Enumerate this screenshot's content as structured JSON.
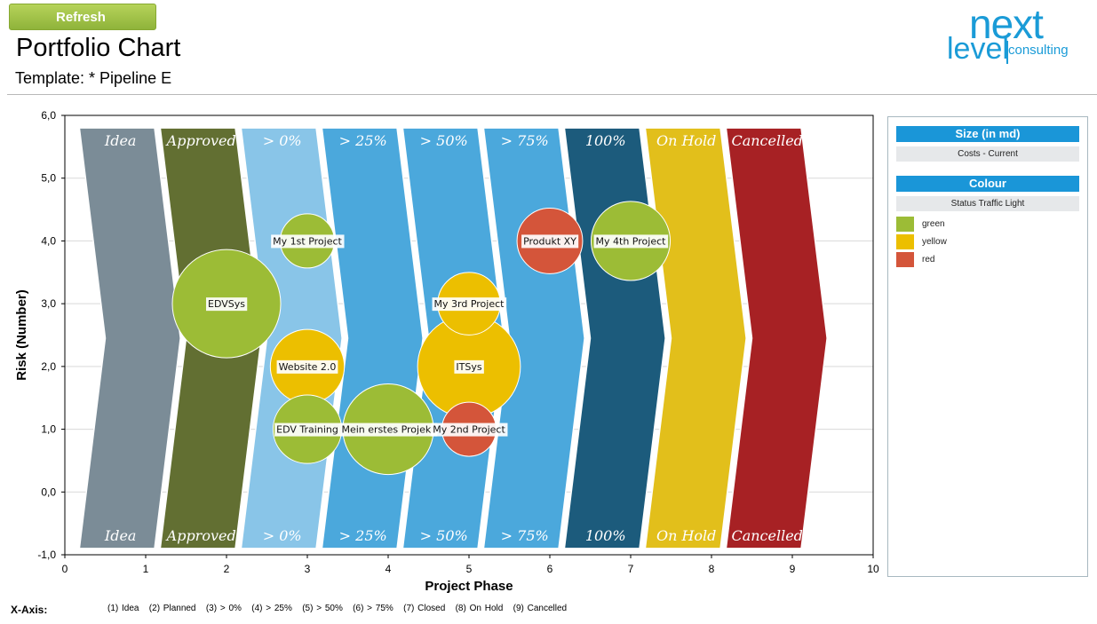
{
  "header": {
    "refresh_label": "Refresh",
    "title": "Portfolio Chart",
    "template": "Template: * Pipeline E"
  },
  "logo": {
    "line1": "next",
    "line2": "level",
    "line3": "consulting"
  },
  "colors": {
    "green": "#9cbc36",
    "yellow": "#ecbf00",
    "red": "#d4553a",
    "accent": "#1a96d8",
    "phases": [
      "#7b8c97",
      "#626f32",
      "#89c5e8",
      "#4ba8dc",
      "#4ba8dc",
      "#4ba8dc",
      "#1c5b7c",
      "#e2bf1b",
      "#a72124"
    ]
  },
  "legend": {
    "size_title": "Size (in md)",
    "size_value": "Costs - Current",
    "colour_title": "Colour",
    "colour_value": "Status Traffic Light",
    "items": [
      {
        "label": "green",
        "color": "#9cbc36"
      },
      {
        "label": "yellow",
        "color": "#ecbf00"
      },
      {
        "label": "red",
        "color": "#d4553a"
      }
    ]
  },
  "x_axis_codes": {
    "label": "X-Axis:",
    "text": "(1) Idea   (2) Planned   (3) > 0%   (4) > 25%   (5) > 50%   (6) > 75%   (7) Closed   (8) On Hold   (9) Cancelled"
  },
  "chart_data": {
    "type": "scatter",
    "title": "Portfolio Chart",
    "xlabel": "Project Phase",
    "ylabel": "Risk (Number)",
    "xlim": [
      0,
      10
    ],
    "ylim": [
      -1,
      6
    ],
    "x_ticks": [
      0,
      1,
      2,
      3,
      4,
      5,
      6,
      7,
      8,
      9,
      10
    ],
    "y_ticks": [
      "-1,0",
      "0,0",
      "1,0",
      "2,0",
      "3,0",
      "4,0",
      "5,0",
      "6,0"
    ],
    "y_tick_values": [
      -1,
      0,
      1,
      2,
      3,
      4,
      5,
      6
    ],
    "grid": true,
    "phases": [
      "Idea",
      "Approved",
      "> 0%",
      "> 25%",
      "> 50%",
      "> 75%",
      "100%",
      "On Hold",
      "Cancelled"
    ],
    "points": [
      {
        "label": "EDVSys",
        "x": 2,
        "y": 3,
        "size": 60,
        "status": "green"
      },
      {
        "label": "My 1st Project",
        "x": 3,
        "y": 4,
        "size": 15,
        "status": "green"
      },
      {
        "label": "Website 2.0",
        "x": 3,
        "y": 2,
        "size": 28,
        "status": "yellow"
      },
      {
        "label": "EDV Training",
        "x": 3,
        "y": 1,
        "size": 24,
        "status": "green"
      },
      {
        "label": "Mein erstes Projekt",
        "x": 4,
        "y": 1,
        "size": 42,
        "status": "green"
      },
      {
        "label": "My 3rd Project",
        "x": 5,
        "y": 3,
        "size": 20,
        "status": "yellow"
      },
      {
        "label": "ITSys",
        "x": 5,
        "y": 2,
        "size": 54,
        "status": "yellow"
      },
      {
        "label": "My 2nd Project",
        "x": 5,
        "y": 1,
        "size": 15,
        "status": "red"
      },
      {
        "label": "Produkt XY",
        "x": 6,
        "y": 4,
        "size": 22,
        "status": "red"
      },
      {
        "label": "My 4th Project",
        "x": 7,
        "y": 4,
        "size": 32,
        "status": "green"
      }
    ]
  }
}
